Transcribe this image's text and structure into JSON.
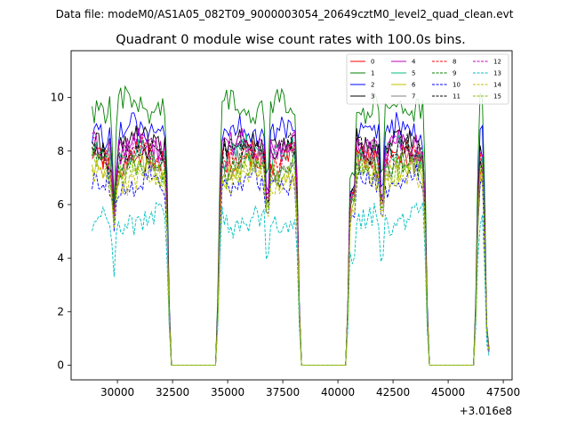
{
  "chart_data": {
    "type": "line",
    "suptitle": "Data file: modeM0/AS1A05_082T09_9000003054_20649cztM0_level2_quad_clean.evt",
    "title": "Quadrant 0 module wise count rates with 100.0s bins.",
    "xlabel": "",
    "ylabel": "",
    "x_offset_label": "+3.016e8",
    "xlim": [
      27900,
      47900
    ],
    "ylim": [
      -0.55,
      11.75
    ],
    "x_ticks": [
      {
        "value": 30000,
        "label": "30000"
      },
      {
        "value": 32500,
        "label": "32500"
      },
      {
        "value": 35000,
        "label": "35000"
      },
      {
        "value": 37500,
        "label": "37500"
      },
      {
        "value": 40000,
        "label": "40000"
      },
      {
        "value": 42500,
        "label": "42500"
      },
      {
        "value": 45000,
        "label": "45000"
      },
      {
        "value": 47500,
        "label": "47500"
      }
    ],
    "y_ticks": [
      {
        "value": 0,
        "label": "0"
      },
      {
        "value": 2,
        "label": "2"
      },
      {
        "value": 4,
        "label": "4"
      },
      {
        "value": 6,
        "label": "6"
      },
      {
        "value": 8,
        "label": "8"
      },
      {
        "value": 10,
        "label": "10"
      }
    ],
    "grid": false,
    "legend_position": "upper-right",
    "legend_columns": 4,
    "bin_seconds": 100,
    "x_start": 28850,
    "x_step": 100,
    "count": 181,
    "gaps": [
      [
        32400,
        34500
      ],
      [
        38300,
        40400
      ],
      [
        44100,
        46200
      ]
    ],
    "series": [
      {
        "name": "0",
        "color": "#ff0000",
        "dash": "solid",
        "level": 7.7,
        "dip": 5.5
      },
      {
        "name": "1",
        "color": "#008000",
        "dash": "solid",
        "level": 9.7,
        "dip": 6.0
      },
      {
        "name": "2",
        "color": "#0000ff",
        "dash": "solid",
        "level": 8.7,
        "dip": 5.6
      },
      {
        "name": "3",
        "color": "#000000",
        "dash": "solid",
        "level": 8.3,
        "dip": 5.6
      },
      {
        "name": "4",
        "color": "#bf00bf",
        "dash": "solid",
        "level": 8.2,
        "dip": 5.5
      },
      {
        "name": "5",
        "color": "#00bf80",
        "dash": "solid",
        "level": 7.9,
        "dip": 5.4
      },
      {
        "name": "6",
        "color": "#bfbf00",
        "dash": "solid",
        "level": 7.2,
        "dip": 5.3
      },
      {
        "name": "7",
        "color": "#808080",
        "dash": "solid",
        "level": 7.5,
        "dip": 5.4
      },
      {
        "name": "8",
        "color": "#ff0000",
        "dash": "dashed",
        "level": 7.8,
        "dip": 5.5
      },
      {
        "name": "9",
        "color": "#008000",
        "dash": "dashed",
        "level": 7.4,
        "dip": 5.3
      },
      {
        "name": "10",
        "color": "#0000ff",
        "dash": "dashed",
        "level": 6.8,
        "dip": 5.0
      },
      {
        "name": "11",
        "color": "#000000",
        "dash": "dashed",
        "level": 8.0,
        "dip": 5.5
      },
      {
        "name": "12",
        "color": "#bf00bf",
        "dash": "dashed",
        "level": 8.0,
        "dip": 5.5
      },
      {
        "name": "13",
        "color": "#00bfbf",
        "dash": "dashed",
        "level": 5.4,
        "dip": 3.3
      },
      {
        "name": "14",
        "color": "#bfbf00",
        "dash": "dashed",
        "level": 7.0,
        "dip": 5.1
      },
      {
        "name": "15",
        "color": "#80bf00",
        "dash": "dashed",
        "level": 7.3,
        "dip": 5.3
      }
    ]
  }
}
